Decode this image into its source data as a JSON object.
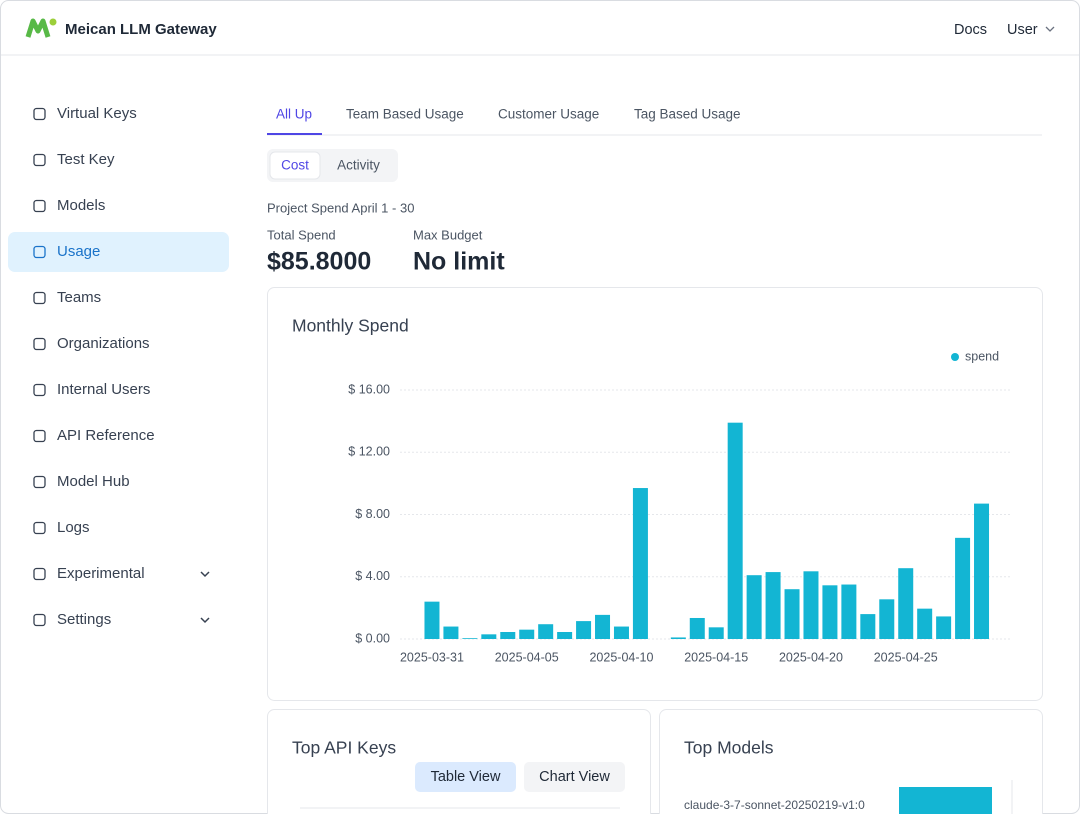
{
  "header": {
    "brand": "Meican LLM Gateway",
    "links": [
      "Docs",
      "User"
    ]
  },
  "sidebar": {
    "items": [
      "Virtual Keys",
      "Test Key",
      "Models",
      "Usage",
      "Teams",
      "Organizations",
      "Internal Users",
      "API Reference",
      "Model Hub",
      "Logs",
      "Experimental",
      "Settings"
    ],
    "active": 3
  },
  "tabs": {
    "items": [
      "All Up",
      "Team Based Usage",
      "Customer Usage",
      "Tag Based Usage"
    ],
    "active": 0
  },
  "subtabs": {
    "items": [
      "Cost",
      "Activity"
    ],
    "active": 0
  },
  "summary": {
    "period": "Project Spend April 1 - 30",
    "total_label": "Total Spend",
    "total": "$85.8000",
    "budget_label": "Max Budget",
    "budget": "No limit"
  },
  "chart_data": {
    "type": "bar",
    "title": "Monthly Spend",
    "categories": [
      "2025-03-31",
      null,
      null,
      null,
      null,
      "2025-04-05",
      null,
      null,
      null,
      null,
      "2025-04-10",
      null,
      null,
      null,
      null,
      "2025-04-15",
      null,
      null,
      null,
      null,
      "2025-04-20",
      null,
      null,
      null,
      null,
      "2025-04-25",
      null,
      null,
      null,
      null
    ],
    "series": [
      {
        "name": "spend",
        "color": "#13b5d3",
        "values": [
          2.4,
          0.8,
          0.05,
          0.3,
          0.45,
          0.6,
          0.95,
          0.45,
          1.15,
          1.55,
          0.8,
          9.7,
          0,
          0.1,
          1.35,
          0.75,
          13.9,
          4.1,
          4.3,
          3.2,
          4.35,
          3.45,
          3.5,
          1.6,
          2.55,
          4.55,
          1.95,
          1.45,
          6.5,
          8.7
        ]
      }
    ],
    "ylim": [
      0,
      16
    ],
    "yticks": [
      {
        "value": 0,
        "label": "$ 0.00"
      },
      {
        "value": 4,
        "label": "$ 4.00"
      },
      {
        "value": 8,
        "label": "$ 8.00"
      },
      {
        "value": 12,
        "label": "$ 12.00"
      },
      {
        "value": 16,
        "label": "$ 16.00"
      }
    ],
    "grid": true,
    "legend": "top-right"
  },
  "panels": {
    "api_keys": {
      "title": "Top API Keys",
      "buttons": [
        "Table View",
        "Chart View"
      ]
    },
    "models": {
      "title": "Top Models",
      "items": [
        "claude-3-7-sonnet-20250219-v1:0"
      ]
    }
  }
}
